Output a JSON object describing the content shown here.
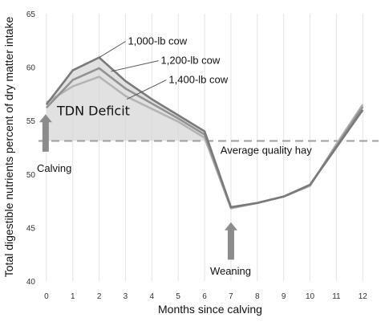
{
  "chart_data": {
    "type": "line",
    "title": "",
    "xlabel": "Months since calving",
    "ylabel": "Total digestible nutrients percent of dry matter intake",
    "x": [
      0,
      1,
      2,
      3,
      4,
      5,
      6,
      7,
      8,
      9,
      10,
      11,
      12
    ],
    "xlim": [
      -0.3,
      12.6
    ],
    "ylim": [
      40,
      65
    ],
    "y_ticks": [
      40,
      45,
      50,
      55,
      60,
      65
    ],
    "grid": "vertical",
    "legend": "inline labels",
    "series": [
      {
        "name": "1,000-lb cow",
        "values": [
          56.5,
          59.7,
          60.9,
          58.7,
          57.0,
          55.5,
          54.0,
          46.9,
          47.3,
          47.9,
          49.0,
          52.5,
          56.0
        ]
      },
      {
        "name": "1,200-lb cow",
        "values": [
          56.2,
          58.8,
          59.9,
          58.0,
          56.6,
          55.2,
          53.7,
          46.9,
          47.3,
          47.9,
          49.0,
          52.6,
          56.3
        ]
      },
      {
        "name": "1,400-lb cow",
        "values": [
          56.7,
          58.2,
          59.1,
          57.3,
          56.1,
          54.9,
          53.4,
          46.8,
          47.3,
          47.9,
          48.9,
          52.8,
          56.5
        ]
      }
    ],
    "reference_line": {
      "label": "Average quality hay",
      "value": 53.1
    },
    "annotations": [
      {
        "id": "calving",
        "text": "Calving",
        "x": 0
      },
      {
        "id": "weaning",
        "text": "Weaning",
        "x": 7
      },
      {
        "id": "deficit",
        "text": "TDN Deficit"
      }
    ],
    "colors": {
      "series_1": "#7a7a7a",
      "series_2": "#939393",
      "series_3": "#b4b4b4",
      "fill": "#d7d7d7",
      "reference": "#9d9d9d",
      "arrow": "#8c8c8c"
    }
  }
}
